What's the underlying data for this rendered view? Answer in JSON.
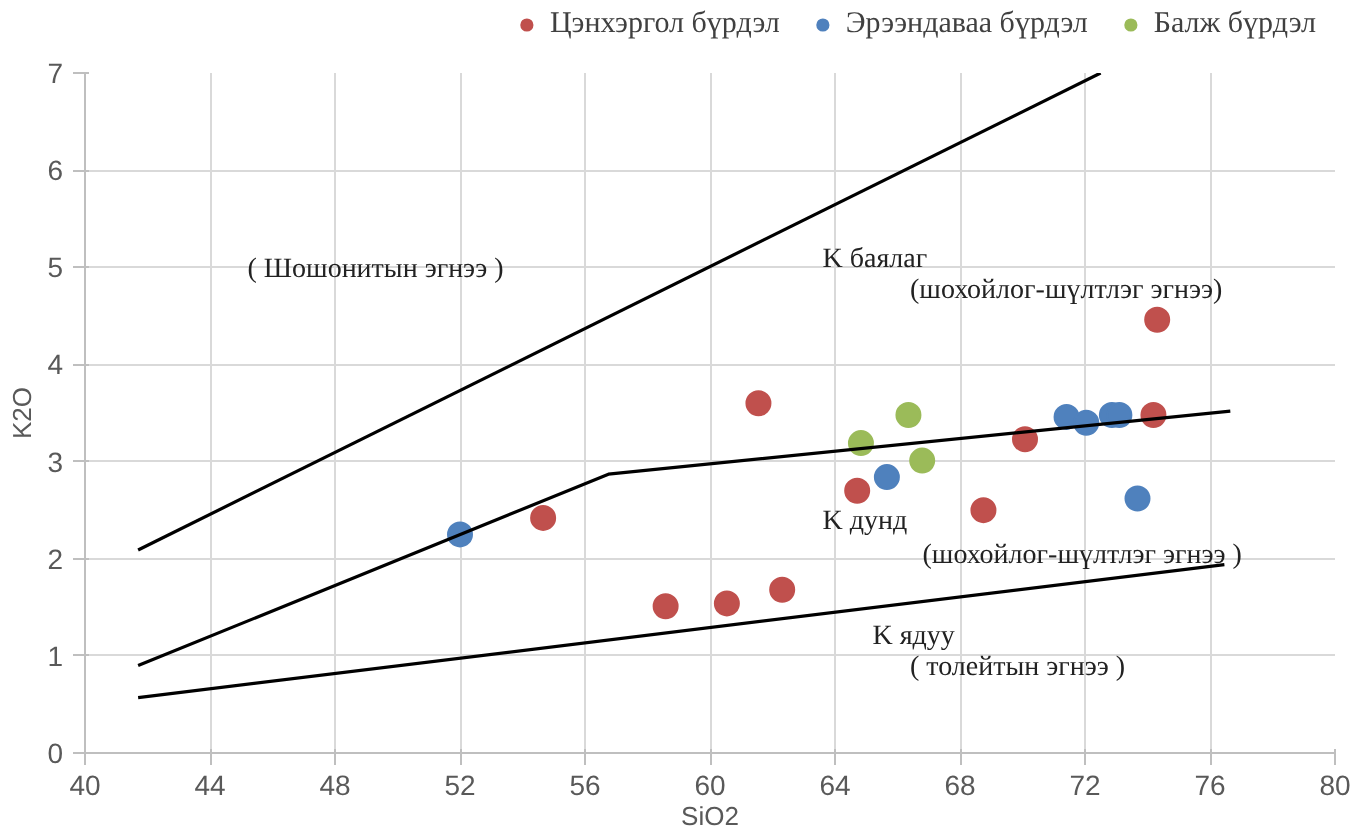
{
  "chart_data": {
    "type": "scatter",
    "xlabel": "SiO2",
    "ylabel": "K2O",
    "xlim": [
      40,
      80
    ],
    "ylim": [
      0,
      7
    ],
    "xticks": [
      40,
      44,
      48,
      52,
      56,
      60,
      64,
      68,
      72,
      76,
      80
    ],
    "yticks": [
      0,
      1,
      2,
      3,
      4,
      5,
      6,
      7
    ],
    "grid": true,
    "legend": "top right",
    "marker": "circle",
    "series": [
      {
        "name": "Цэнхэргол бүрдэл",
        "color": "#c0504d",
        "x": [
          54.66,
          58.58,
          60.54,
          62.31,
          61.55,
          64.71,
          68.75,
          70.08,
          74.31,
          74.19
        ],
        "values": [
          2.42,
          1.51,
          1.54,
          1.68,
          3.6,
          2.7,
          2.5,
          3.23,
          4.46,
          3.48
        ]
      },
      {
        "name": "Эрээндаваа бүрдэл",
        "color": "#4f81bd",
        "x": [
          52.0,
          65.66,
          71.41,
          72.04,
          72.86,
          73.1,
          73.68
        ],
        "values": [
          2.25,
          2.84,
          3.46,
          3.4,
          3.48,
          3.48,
          2.62
        ]
      },
      {
        "name": "Балж бүрдэл",
        "color": "#9bbb59",
        "x": [
          64.83,
          66.35,
          66.79
        ],
        "values": [
          3.19,
          3.48,
          3.01
        ]
      },
      {
        "type": "line",
        "marker": "none",
        "color": "#000000",
        "x": [
          41.7,
          72.5
        ],
        "values": [
          2.09,
          7.0
        ]
      },
      {
        "type": "line",
        "marker": "none",
        "color": "#000000",
        "x": [
          41.7,
          56.75,
          76.65
        ],
        "values": [
          0.9,
          2.87,
          3.52
        ]
      },
      {
        "type": "line",
        "marker": "none",
        "color": "#000000",
        "x": [
          41.7,
          76.46
        ],
        "values": [
          0.57,
          1.94
        ]
      }
    ],
    "annotations": [
      "( Шошонитын эгнээ )",
      "K баялаг",
      "(шохойлог-шүлтлэг эгнээ)",
      "K дунд",
      "(шохойлог-шүлтлэг эгнээ )",
      "K ядуу",
      "( толейтын эгнээ )"
    ]
  }
}
